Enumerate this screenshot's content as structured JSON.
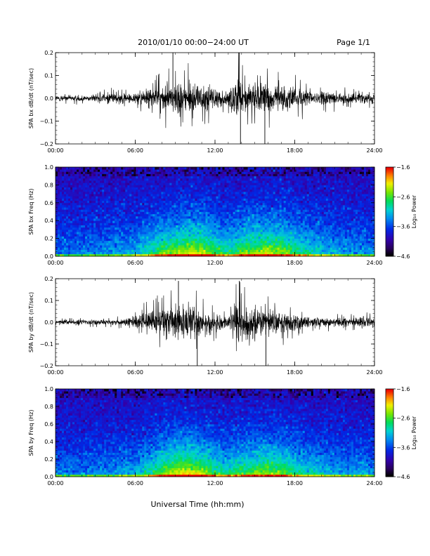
{
  "header": {
    "title": "2010/01/10   00:00−24:00 UT",
    "page": "Page 1/1"
  },
  "x_title": "Universal Time (hh:mm)",
  "chart_data": [
    {
      "type": "line",
      "ylabel": "SPA bx dB/dt (nT/sec)",
      "xlabel": "",
      "xlim": [
        "00:00",
        "24:00"
      ],
      "ylim": [
        -0.2,
        0.2
      ],
      "x_ticks": [
        "00:00",
        "06:00",
        "12:00",
        "18:00",
        "24:00"
      ],
      "y_ticks": [
        "0.2",
        "0.1",
        "0.0",
        "−0.1",
        "−0.2"
      ],
      "series_color": "#000000",
      "envelope": {
        "hours": [
          0,
          2,
          3.5,
          4,
          5,
          6,
          7,
          8,
          9,
          10,
          11,
          12,
          13,
          13.8,
          14,
          15,
          16,
          17,
          18,
          19,
          20,
          21,
          22,
          23,
          24
        ],
        "amplitude": [
          0.02,
          0.025,
          0.03,
          0.05,
          0.04,
          0.045,
          0.07,
          0.1,
          0.13,
          0.13,
          0.11,
          0.08,
          0.06,
          0.2,
          0.13,
          0.11,
          0.12,
          0.1,
          0.09,
          0.07,
          0.06,
          0.05,
          0.04,
          0.04,
          0.035
        ]
      },
      "peaks": [
        {
          "time": "08:50",
          "value": 0.2
        },
        {
          "time": "13:50",
          "value": 0.2
        },
        {
          "time": "13:55",
          "value": -0.2
        },
        {
          "time": "15:45",
          "value": -0.2
        }
      ]
    },
    {
      "type": "heatmap",
      "ylabel": "SPA bx Freq (Hz)",
      "xlabel": "",
      "xlim": [
        "00:00",
        "24:00"
      ],
      "ylim": [
        0.0,
        1.0
      ],
      "x_ticks": [
        "00:00",
        "06:00",
        "12:00",
        "18:00",
        "24:00"
      ],
      "y_ticks": [
        "1.0",
        "0.8",
        "0.6",
        "0.4",
        "0.2",
        "0.0"
      ],
      "colorbar": {
        "label": "Log₁₀ Power",
        "ticks": [
          "−1.6",
          "−2.6",
          "−3.6",
          "−4.6"
        ],
        "range": [
          -4.6,
          -1.6
        ]
      },
      "power_envelope": {
        "hours": [
          0,
          2,
          4,
          6,
          7,
          8,
          9,
          10,
          11,
          12,
          13,
          14,
          15,
          16,
          17,
          18,
          19,
          20,
          21,
          22,
          23,
          24
        ],
        "level": [
          0.15,
          0.2,
          0.25,
          0.3,
          0.45,
          0.6,
          0.7,
          0.8,
          0.75,
          0.6,
          0.45,
          0.65,
          0.7,
          0.75,
          0.7,
          0.55,
          0.45,
          0.35,
          0.3,
          0.25,
          0.25,
          0.2
        ]
      }
    },
    {
      "type": "line",
      "ylabel": "SPA by dB/dt (nT/sec)",
      "xlabel": "",
      "xlim": [
        "00:00",
        "24:00"
      ],
      "ylim": [
        -0.2,
        0.2
      ],
      "x_ticks": [
        "00:00",
        "06:00",
        "12:00",
        "18:00",
        "24:00"
      ],
      "y_ticks": [
        "0.2",
        "0.1",
        "0.0",
        "−0.1",
        "−0.2"
      ],
      "series_color": "#000000",
      "envelope": {
        "hours": [
          0,
          2,
          4,
          5,
          6,
          7,
          8,
          9,
          10,
          11,
          12,
          13,
          13.8,
          14,
          15,
          16,
          17,
          18,
          19,
          20,
          21,
          22,
          23,
          24
        ],
        "amplitude": [
          0.015,
          0.02,
          0.02,
          0.03,
          0.05,
          0.09,
          0.11,
          0.15,
          0.15,
          0.12,
          0.07,
          0.05,
          0.19,
          0.14,
          0.13,
          0.12,
          0.09,
          0.07,
          0.05,
          0.04,
          0.035,
          0.03,
          0.05,
          0.04
        ]
      },
      "peaks": [
        {
          "time": "09:15",
          "value": 0.19
        },
        {
          "time": "13:50",
          "value": 0.19
        },
        {
          "time": "10:40",
          "value": -0.2
        },
        {
          "time": "15:50",
          "value": -0.2
        }
      ]
    },
    {
      "type": "heatmap",
      "ylabel": "SPA by Freq (Hz)",
      "xlabel": "",
      "xlim": [
        "00:00",
        "24:00"
      ],
      "ylim": [
        0.0,
        1.0
      ],
      "x_ticks": [
        "00:00",
        "06:00",
        "12:00",
        "18:00",
        "24:00"
      ],
      "y_ticks": [
        "1.0",
        "0.8",
        "0.6",
        "0.4",
        "0.2",
        "0.0"
      ],
      "colorbar": {
        "label": "Log₁₀ Power",
        "ticks": [
          "−1.6",
          "−2.6",
          "−3.6",
          "−4.6"
        ],
        "range": [
          -4.6,
          -1.6
        ]
      },
      "power_envelope": {
        "hours": [
          0,
          2,
          4,
          6,
          7,
          8,
          9,
          10,
          11,
          12,
          13,
          14,
          15,
          16,
          17,
          18,
          19,
          20,
          21,
          22,
          23,
          24
        ],
        "level": [
          0.2,
          0.2,
          0.25,
          0.3,
          0.45,
          0.65,
          0.8,
          0.85,
          0.75,
          0.55,
          0.45,
          0.6,
          0.65,
          0.7,
          0.65,
          0.5,
          0.4,
          0.35,
          0.3,
          0.25,
          0.3,
          0.2
        ]
      }
    }
  ]
}
